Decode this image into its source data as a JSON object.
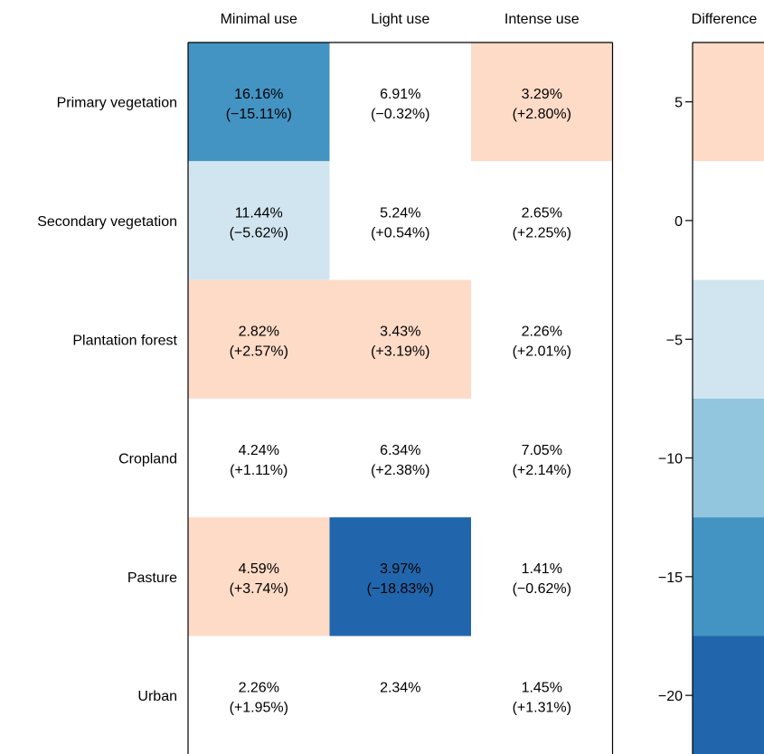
{
  "chart_data": {
    "type": "heatmap",
    "columns": [
      "Minimal use",
      "Light use",
      "Intense use"
    ],
    "rows": [
      "Primary vegetation",
      "Secondary vegetation",
      "Plantation forest",
      "Cropland",
      "Pasture",
      "Urban"
    ],
    "cells": [
      [
        {
          "value": "16.16%",
          "diff": "(−15.11%)",
          "difference": -15.11
        },
        {
          "value": "6.91%",
          "diff": "(−0.32%)",
          "difference": -0.32
        },
        {
          "value": "3.29%",
          "diff": "(+2.80%)",
          "difference": 2.8
        }
      ],
      [
        {
          "value": "11.44%",
          "diff": "(−5.62%)",
          "difference": -5.62
        },
        {
          "value": "5.24%",
          "diff": "(+0.54%)",
          "difference": 0.54
        },
        {
          "value": "2.65%",
          "diff": "(+2.25%)",
          "difference": 2.25
        }
      ],
      [
        {
          "value": "2.82%",
          "diff": "(+2.57%)",
          "difference": 2.57
        },
        {
          "value": "3.43%",
          "diff": "(+3.19%)",
          "difference": 3.19
        },
        {
          "value": "2.26%",
          "diff": "(+2.01%)",
          "difference": 2.01
        }
      ],
      [
        {
          "value": "4.24%",
          "diff": "(+1.11%)",
          "difference": 1.11
        },
        {
          "value": "6.34%",
          "diff": "(+2.38%)",
          "difference": 2.38
        },
        {
          "value": "7.05%",
          "diff": "(+2.14%)",
          "difference": 2.14
        }
      ],
      [
        {
          "value": "4.59%",
          "diff": "(+3.74%)",
          "difference": 3.74
        },
        {
          "value": "3.97%",
          "diff": "(−18.83%)",
          "difference": -18.83
        },
        {
          "value": "1.41%",
          "diff": "(−0.62%)",
          "difference": -0.62
        }
      ],
      [
        {
          "value": "2.26%",
          "diff": "(+1.95%)",
          "difference": 1.95
        },
        {
          "value": "2.34%",
          "diff": "",
          "difference": 0
        },
        {
          "value": "1.45%",
          "diff": "(+1.31%)",
          "difference": 1.31
        }
      ]
    ],
    "colorbar": {
      "title": "Difference",
      "range": [
        -22.5,
        7.5
      ],
      "ticks": [
        5,
        0,
        -5,
        -10,
        -15,
        -20
      ],
      "tick_labels": [
        "5",
        "0",
        "−5",
        "−10",
        "−15",
        "−20"
      ],
      "bins": [
        {
          "from": 2.5,
          "to": 7.5,
          "color": "#fddbc7"
        },
        {
          "from": -2.5,
          "to": 2.5,
          "color": "#ffffff"
        },
        {
          "from": -7.5,
          "to": -2.5,
          "color": "#d1e5f0"
        },
        {
          "from": -12.5,
          "to": -7.5,
          "color": "#92c5de"
        },
        {
          "from": -17.5,
          "to": -12.5,
          "color": "#4393c3"
        },
        {
          "from": -22.5,
          "to": -17.5,
          "color": "#2166ac"
        }
      ]
    }
  }
}
